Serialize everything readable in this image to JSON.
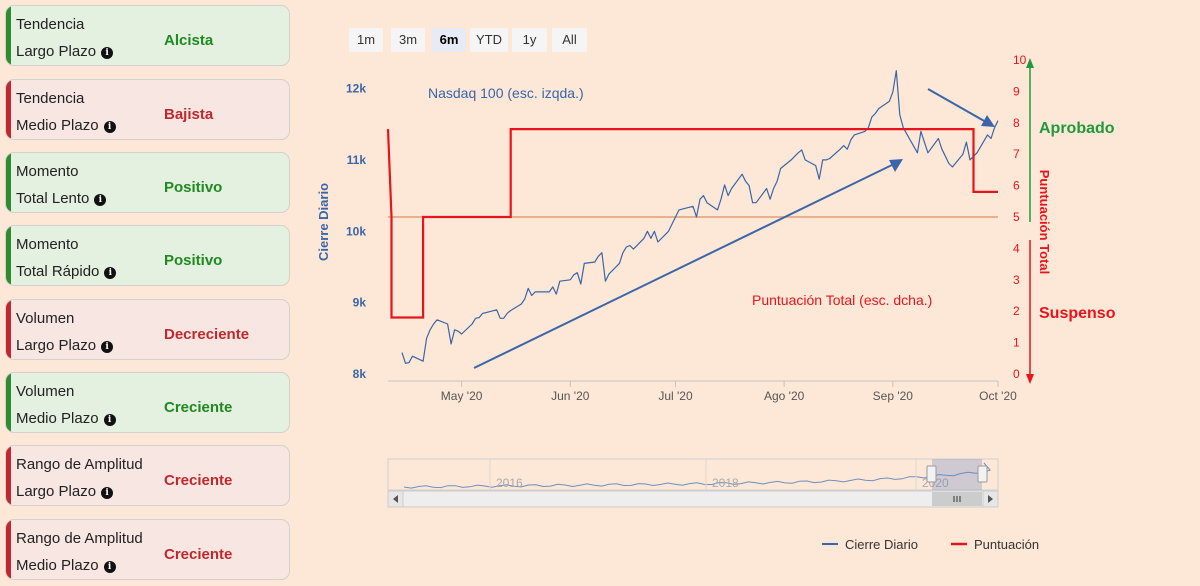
{
  "indicators": [
    {
      "line1": "Tendencia",
      "line2": "Largo Plazo",
      "value": "Alcista",
      "state": "green"
    },
    {
      "line1": "Tendencia",
      "line2": "Medio Plazo",
      "value": "Bajista",
      "state": "red"
    },
    {
      "line1": "Momento",
      "line2": "Total Lento",
      "value": "Positivo",
      "state": "green"
    },
    {
      "line1": "Momento",
      "line2": "Total Rápido",
      "value": "Positivo",
      "state": "green"
    },
    {
      "line1": "Volumen",
      "line2": "Largo Plazo",
      "value": "Decreciente",
      "state": "red"
    },
    {
      "line1": "Volumen",
      "line2": "Medio Plazo",
      "value": "Creciente",
      "state": "green"
    },
    {
      "line1": "Rango de Amplitud",
      "line2": "Largo Plazo",
      "value": "Creciente",
      "state": "red"
    },
    {
      "line1": "Rango de Amplitud",
      "line2": "Medio Plazo",
      "value": "Creciente",
      "state": "red"
    }
  ],
  "info_icon": "info-circle-icon",
  "range_selector": {
    "buttons": [
      "1m",
      "3m",
      "6m",
      "YTD",
      "1y",
      "All"
    ],
    "selected": "6m"
  },
  "colors": {
    "close": "#3a65a8",
    "score": "#e8141c",
    "approved": "#1f9a3a",
    "failed": "#e8141c",
    "threshold": "#e8b08c"
  },
  "chart_data": {
    "type": "line",
    "x_tick_labels": [
      "May '20",
      "Jun '20",
      "Jul '20",
      "Ago '20",
      "Sep '20",
      "Oct '20"
    ],
    "y_left_label": "Cierre Diario",
    "y_left_ticks": [
      "8k",
      "9k",
      "10k",
      "11k",
      "12k"
    ],
    "y_left_range": [
      8000,
      12400
    ],
    "y_right_label": "Puntuación Total",
    "y_right_ticks": [
      "0",
      "1",
      "2",
      "3",
      "4",
      "5",
      "6",
      "7",
      "8",
      "9",
      "10"
    ],
    "y_right_range": [
      0,
      10
    ],
    "threshold": 5,
    "annotations": {
      "close_label": "Nasdaq 100 (esc. izqda.)",
      "score_label": "Puntuación Total (esc. dcha.)",
      "approved": "Aprobado",
      "failed": "Suspenso"
    },
    "series": [
      {
        "name": "Cierre Diario",
        "x": [
          "2020-04-14",
          "2020-04-15",
          "2020-04-16",
          "2020-04-17",
          "2020-04-20",
          "2020-04-21",
          "2020-04-22",
          "2020-04-23",
          "2020-04-24",
          "2020-04-27",
          "2020-04-28",
          "2020-04-29",
          "2020-04-30",
          "2020-05-01",
          "2020-05-04",
          "2020-05-05",
          "2020-05-06",
          "2020-05-07",
          "2020-05-08",
          "2020-05-11",
          "2020-05-12",
          "2020-05-13",
          "2020-05-14",
          "2020-05-15",
          "2020-05-18",
          "2020-05-19",
          "2020-05-20",
          "2020-05-21",
          "2020-05-22",
          "2020-05-26",
          "2020-05-27",
          "2020-05-28",
          "2020-05-29",
          "2020-06-01",
          "2020-06-02",
          "2020-06-03",
          "2020-06-04",
          "2020-06-05",
          "2020-06-08",
          "2020-06-09",
          "2020-06-10",
          "2020-06-11",
          "2020-06-12",
          "2020-06-15",
          "2020-06-16",
          "2020-06-17",
          "2020-06-18",
          "2020-06-19",
          "2020-06-22",
          "2020-06-23",
          "2020-06-24",
          "2020-06-25",
          "2020-06-26",
          "2020-06-29",
          "2020-06-30",
          "2020-07-01",
          "2020-07-02",
          "2020-07-06",
          "2020-07-07",
          "2020-07-08",
          "2020-07-09",
          "2020-07-10",
          "2020-07-13",
          "2020-07-14",
          "2020-07-15",
          "2020-07-16",
          "2020-07-17",
          "2020-07-20",
          "2020-07-21",
          "2020-07-22",
          "2020-07-23",
          "2020-07-24",
          "2020-07-27",
          "2020-07-28",
          "2020-07-29",
          "2020-07-30",
          "2020-07-31",
          "2020-08-03",
          "2020-08-04",
          "2020-08-05",
          "2020-08-06",
          "2020-08-07",
          "2020-08-10",
          "2020-08-11",
          "2020-08-12",
          "2020-08-13",
          "2020-08-14",
          "2020-08-17",
          "2020-08-18",
          "2020-08-19",
          "2020-08-20",
          "2020-08-21",
          "2020-08-24",
          "2020-08-25",
          "2020-08-26",
          "2020-08-27",
          "2020-08-28",
          "2020-08-31",
          "2020-09-01",
          "2020-09-02",
          "2020-09-03",
          "2020-09-04",
          "2020-09-08",
          "2020-09-09",
          "2020-09-10",
          "2020-09-11",
          "2020-09-14",
          "2020-09-15",
          "2020-09-16",
          "2020-09-17",
          "2020-09-18",
          "2020-09-21",
          "2020-09-22",
          "2020-09-23",
          "2020-09-24",
          "2020-09-25",
          "2020-09-28",
          "2020-09-29",
          "2020-09-30",
          "2020-10-01"
        ],
        "values": [
          8300,
          8150,
          8160,
          8250,
          8180,
          8500,
          8620,
          8700,
          8760,
          8700,
          8420,
          8620,
          8600,
          8560,
          8700,
          8780,
          8790,
          8850,
          8860,
          8900,
          8780,
          8780,
          8850,
          8890,
          8980,
          9050,
          9200,
          9100,
          9150,
          9150,
          9220,
          9120,
          9300,
          9320,
          9390,
          9420,
          9260,
          9550,
          9570,
          9650,
          9700,
          9300,
          9400,
          9550,
          9700,
          9780,
          9800,
          9750,
          9900,
          10000,
          9900,
          10000,
          9850,
          10000,
          10100,
          10200,
          10300,
          10350,
          10200,
          10450,
          10500,
          10400,
          10300,
          10450,
          10650,
          10500,
          10600,
          10800,
          10700,
          10640,
          10400,
          10400,
          10600,
          10450,
          10600,
          10700,
          10880,
          11000,
          11050,
          11100,
          11140,
          11000,
          10920,
          10730,
          11000,
          11000,
          11020,
          11150,
          11200,
          11150,
          11280,
          11350,
          11400,
          11450,
          11600,
          11650,
          11720,
          11820,
          11950,
          12250,
          11630,
          11450,
          11100,
          11400,
          11250,
          11100,
          11300,
          11150,
          11050,
          10950,
          10900,
          11080,
          11250,
          11000,
          11050,
          11100,
          11350,
          11300,
          11450,
          11550
        ]
      },
      {
        "name": "Puntuación",
        "x": [
          "2020-04-10",
          "2020-04-11",
          "2020-04-11",
          "2020-04-20",
          "2020-04-20",
          "2020-05-15",
          "2020-05-15",
          "2020-09-24",
          "2020-09-24",
          "2020-10-01"
        ],
        "values": [
          7.8,
          5,
          1.8,
          1.8,
          5,
          5,
          7.8,
          7.8,
          5.8,
          5.8
        ]
      }
    ],
    "legend": [
      "Cierre Diario",
      "Puntuación"
    ],
    "legend_position": "bottom-right",
    "navigator": {
      "tick_labels": [
        "2016",
        "2018",
        "2020"
      ]
    }
  }
}
